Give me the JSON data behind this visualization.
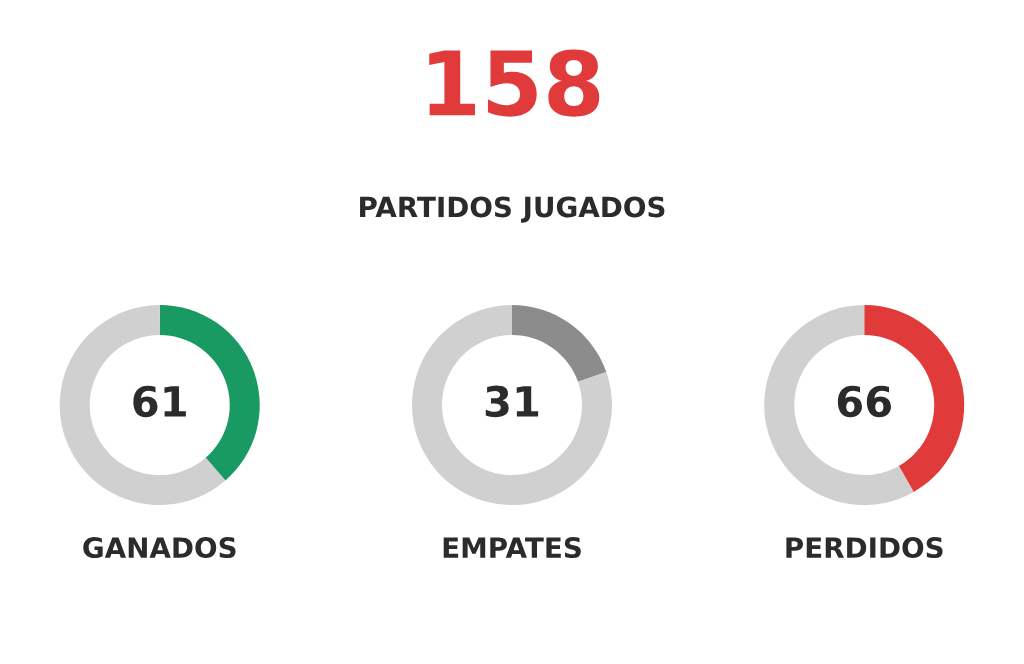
{
  "chart_data": [
    {
      "type": "other",
      "title": "158",
      "subtitle": "PARTIDOS JUGADOS"
    },
    {
      "type": "donut",
      "title": "GANADOS",
      "categories": [
        null,
        null
      ],
      "values": [
        61,
        97
      ],
      "colors": [
        "#1a9a63",
        "#d0d0d0"
      ],
      "value_labels": [
        "61",
        null
      ]
    },
    {
      "type": "donut",
      "title": "EMPATES",
      "categories": [
        null,
        null
      ],
      "values": [
        31,
        127
      ],
      "colors": [
        "#8c8c8c",
        "#d0d0d0"
      ],
      "value_labels": [
        "31",
        null
      ]
    },
    {
      "type": "donut",
      "title": "PERDIDOS",
      "categories": [
        null,
        null
      ],
      "values": [
        66,
        92
      ],
      "colors": [
        "#e03a3a",
        "#d0d0d0"
      ],
      "value_labels": [
        "66",
        null
      ]
    }
  ]
}
